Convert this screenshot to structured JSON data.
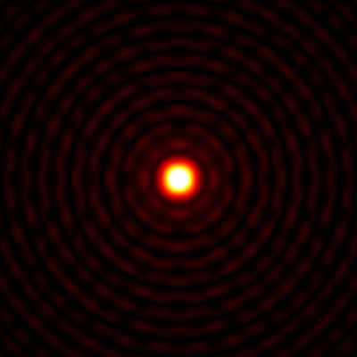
{
  "image": {
    "subject": "diffraction-pattern",
    "colormap": "hot",
    "background": "#000000",
    "colors": {
      "peak": "#ffffe0",
      "mid": "#ff8800",
      "ring": "#6a0000",
      "dark": "#000000"
    }
  }
}
